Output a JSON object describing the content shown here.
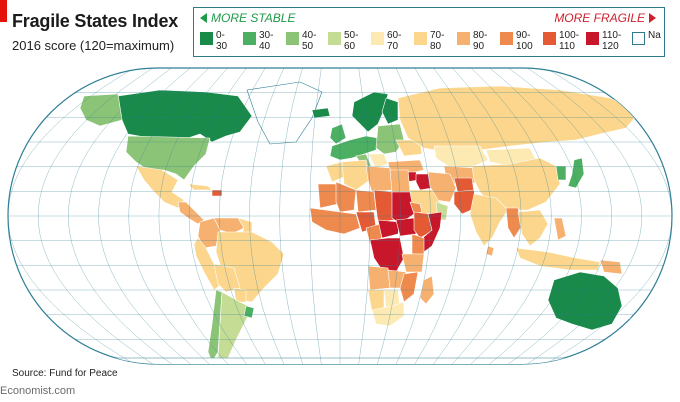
{
  "header": {
    "title": "Fragile States Index",
    "subtitle": "2016 score (120=maximum)"
  },
  "legend": {
    "stable_label": "MORE STABLE",
    "fragile_label": "MORE FRAGILE",
    "items": [
      {
        "top": "0-",
        "bottom": "30",
        "color": "#1a8a4a"
      },
      {
        "top": "30-",
        "bottom": "40",
        "color": "#4daf62"
      },
      {
        "top": "40-",
        "bottom": "50",
        "color": "#8cc477"
      },
      {
        "top": "50-",
        "bottom": "60",
        "color": "#c5dc95"
      },
      {
        "top": "60-",
        "bottom": "70",
        "color": "#fde9b2"
      },
      {
        "top": "70-",
        "bottom": "80",
        "color": "#fbd68c"
      },
      {
        "top": "80-",
        "bottom": "90",
        "color": "#f6b070"
      },
      {
        "top": "90-",
        "bottom": "100",
        "color": "#ef8a4e"
      },
      {
        "top": "100-",
        "bottom": "110",
        "color": "#e45a35"
      },
      {
        "top": "110-",
        "bottom": "120",
        "color": "#c8172a"
      },
      {
        "top": "Na",
        "bottom": "",
        "color": "#ffffff"
      }
    ]
  },
  "map": {
    "ocean_color": "#ffffff",
    "graticule_color": "#2f7f95",
    "border_color": "#ffffff"
  },
  "footer": {
    "source": "Source: Fund for Peace",
    "brand": "Economist.com"
  }
}
